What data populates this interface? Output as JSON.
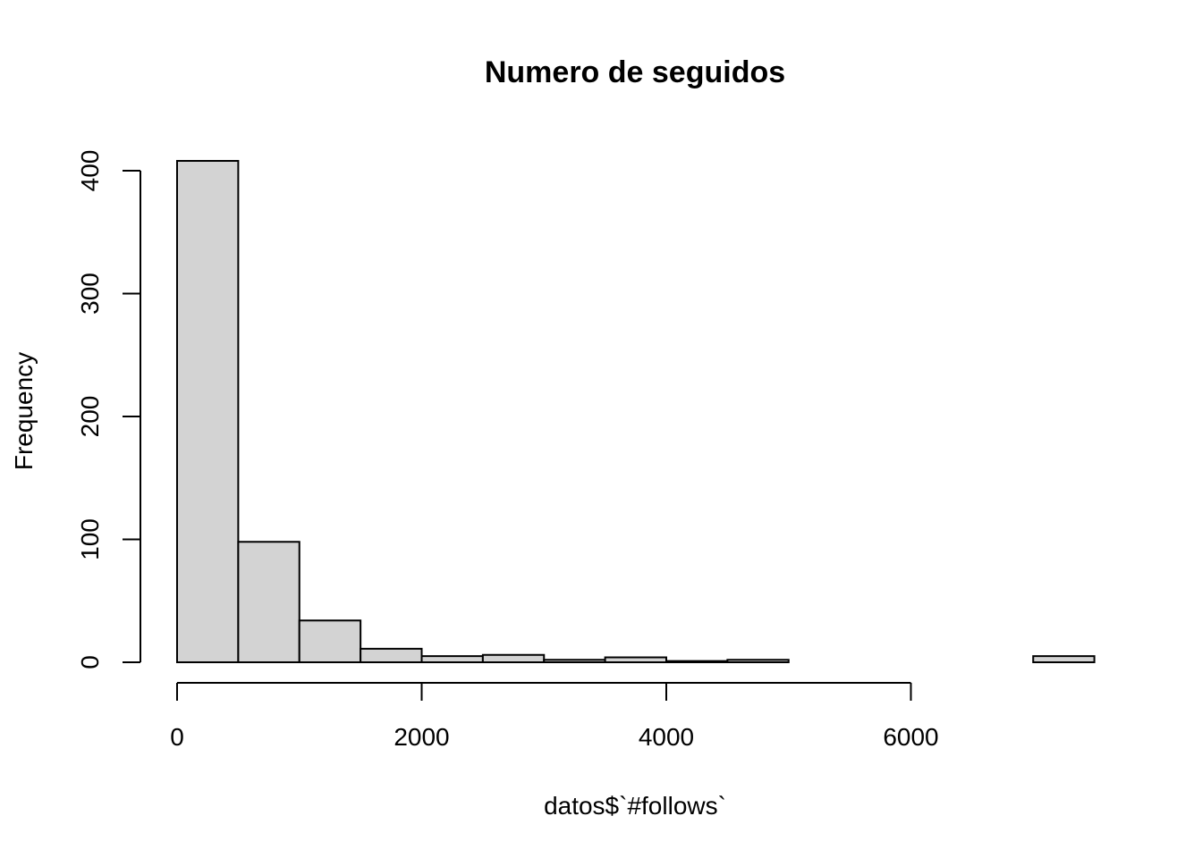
{
  "chart_data": {
    "type": "bar",
    "title": "Numero de seguidos",
    "xlabel": "datos$`#follows`",
    "ylabel": "Frequency",
    "bar_color": "#d3d3d3",
    "edge_color": "#000000",
    "bin_width": 500,
    "bins": [
      {
        "start": 0,
        "end": 500,
        "count": 408
      },
      {
        "start": 500,
        "end": 1000,
        "count": 98
      },
      {
        "start": 1000,
        "end": 1500,
        "count": 34
      },
      {
        "start": 1500,
        "end": 2000,
        "count": 11
      },
      {
        "start": 2000,
        "end": 2500,
        "count": 5
      },
      {
        "start": 2500,
        "end": 3000,
        "count": 6
      },
      {
        "start": 3000,
        "end": 3500,
        "count": 2
      },
      {
        "start": 3500,
        "end": 4000,
        "count": 4
      },
      {
        "start": 4000,
        "end": 4500,
        "count": 1
      },
      {
        "start": 4500,
        "end": 5000,
        "count": 2
      },
      {
        "start": 5000,
        "end": 5500,
        "count": 0
      },
      {
        "start": 5500,
        "end": 6000,
        "count": 0
      },
      {
        "start": 6000,
        "end": 6500,
        "count": 0
      },
      {
        "start": 6500,
        "end": 7000,
        "count": 0
      },
      {
        "start": 7000,
        "end": 7500,
        "count": 5
      }
    ],
    "xlim": [
      0,
      7500
    ],
    "ylim": [
      0,
      408
    ],
    "x_ticks": [
      0,
      2000,
      4000,
      6000
    ],
    "x_tick_labels": [
      "0",
      "2000",
      "4000",
      "6000"
    ],
    "y_ticks": [
      0,
      100,
      200,
      300,
      400
    ],
    "y_tick_labels": [
      "0",
      "100",
      "200",
      "300",
      "400"
    ],
    "grid": false,
    "legend": "none"
  }
}
